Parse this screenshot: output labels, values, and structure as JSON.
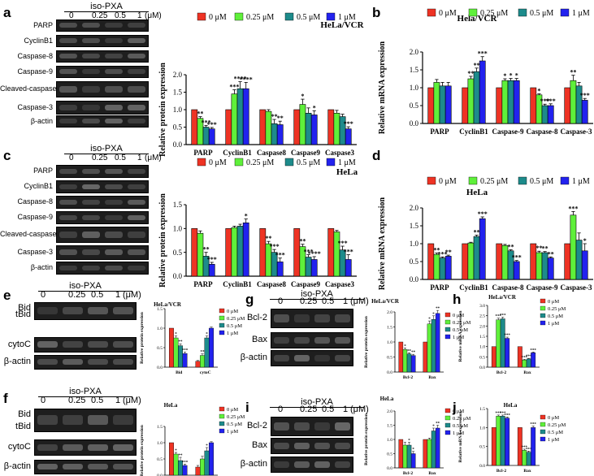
{
  "figure": {
    "unit": "(μM)",
    "drug": "iso-PXA",
    "conc_full": [
      "0",
      "0.25",
      "0.5",
      "1"
    ],
    "legend_labels": [
      "0 μM",
      "0.25 μM",
      "0.5 μM",
      "1 μM"
    ],
    "colors": [
      "#ee3324",
      "#5ff03a",
      "#1d8b8b",
      "#2222ee"
    ],
    "legend_labels_small": [
      "0 μM",
      "0.25 μM",
      "0.5 μM",
      "1 μM"
    ]
  },
  "panel_a": {
    "letter": "a",
    "blot_labels": [
      "PARP",
      "CyclinB1",
      "Caspase-8",
      "Caspase-9",
      "Cleaved-caspase9",
      "Caspase-3",
      "β-actin"
    ]
  },
  "panel_c": {
    "letter": "c",
    "blot_labels": [
      "PARP",
      "CyclinB1",
      "Caspase-8",
      "Caspase-9",
      "Cleaved-caspase9",
      "Caspase-3",
      "β-actin"
    ]
  },
  "panel_e": {
    "letter": "e",
    "blot_labels": [
      "Bid",
      "tBid",
      "cytoC",
      "β-actin"
    ]
  },
  "panel_f": {
    "letter": "f",
    "blot_labels": [
      "Bid",
      "tBid",
      "cytoC",
      "β-actin"
    ]
  },
  "panel_g": {
    "letter": "g",
    "blot_labels": [
      "Bcl-2",
      "Bax",
      "β-actin"
    ]
  },
  "panel_i": {
    "letter": "i",
    "blot_labels": [
      "Bcl-2",
      "Bax",
      "β-actin"
    ]
  },
  "chart_data": [
    {
      "id": "a",
      "type": "bar",
      "title": "HeLa/VCR",
      "ylabel": "Relative protein expression",
      "xlabel": "",
      "ylim": [
        0,
        2.0
      ],
      "yticks": [
        0.0,
        0.5,
        1.0,
        1.5,
        2.0
      ],
      "grid": false,
      "legend": "top",
      "categories": [
        "PARP",
        "CyclinB1",
        "Caspase8",
        "Caspase9",
        "Caspase3"
      ],
      "series": [
        {
          "name": "0 μM",
          "values": [
            1.0,
            1.0,
            1.0,
            1.0,
            1.0
          ],
          "errors": [
            0,
            0,
            0,
            0,
            0
          ]
        },
        {
          "name": "0.25 μM",
          "values": [
            0.75,
            1.45,
            0.95,
            1.15,
            0.9
          ],
          "errors": [
            0.05,
            0.12,
            0.05,
            0.15,
            0.08
          ]
        },
        {
          "name": "0.5 μM",
          "values": [
            0.5,
            1.6,
            0.6,
            0.9,
            0.8
          ],
          "errors": [
            0.05,
            0.2,
            0.12,
            0.15,
            0.07
          ]
        },
        {
          "name": "1 μM",
          "values": [
            0.45,
            1.6,
            0.57,
            0.85,
            0.45
          ],
          "errors": [
            0.04,
            0.18,
            0.1,
            0.12,
            0.06
          ]
        }
      ],
      "annotations": [
        [
          "",
          "**",
          "***",
          "***"
        ],
        [
          "",
          "***",
          "****",
          "****"
        ],
        [
          "",
          "",
          "**",
          "**"
        ],
        [
          "",
          "*",
          "",
          "*"
        ],
        [
          "",
          "",
          "",
          "***"
        ]
      ]
    },
    {
      "id": "b",
      "type": "bar",
      "title": "Hela/VCR",
      "ylabel": "Relative mRNA expression",
      "xlabel": "",
      "ylim": [
        0,
        2.0
      ],
      "yticks": [
        0.0,
        0.5,
        1.0,
        1.5,
        2.0
      ],
      "grid": false,
      "legend": "top",
      "categories": [
        "PARP",
        "CyclinB1",
        "Caspase-9",
        "Caspase-8",
        "Caspase-3"
      ],
      "series": [
        {
          "name": "0 μM",
          "values": [
            1.0,
            1.0,
            1.0,
            1.0,
            1.0
          ],
          "errors": [
            0,
            0,
            0,
            0,
            0
          ]
        },
        {
          "name": "0.25 μM",
          "values": [
            1.15,
            1.25,
            1.2,
            0.8,
            1.2
          ],
          "errors": [
            0.08,
            0.07,
            0.05,
            0.03,
            0.15
          ]
        },
        {
          "name": "0.5 μM",
          "values": [
            1.05,
            1.45,
            1.2,
            0.5,
            1.05
          ],
          "errors": [
            0.1,
            0.1,
            0.06,
            0.04,
            0.1
          ]
        },
        {
          "name": "1 μM",
          "values": [
            1.05,
            1.75,
            1.2,
            0.5,
            0.65
          ],
          "errors": [
            0.1,
            0.12,
            0.06,
            0.05,
            0.05
          ]
        }
      ],
      "annotations": [
        [
          "",
          "",
          "",
          ""
        ],
        [
          "",
          "**",
          "**",
          "***"
        ],
        [
          "",
          "*",
          "*",
          "*"
        ],
        [
          "",
          "*",
          "***",
          "***"
        ],
        [
          "",
          "**",
          "",
          "***"
        ]
      ]
    },
    {
      "id": "c",
      "type": "bar",
      "title": "HeLa",
      "ylabel": "Relative protein expression",
      "xlabel": "",
      "ylim": [
        0,
        1.5
      ],
      "yticks": [
        0.0,
        0.5,
        1.0,
        1.5
      ],
      "grid": false,
      "legend": "top",
      "categories": [
        "PARP",
        "CyclinB1",
        "Caspase8",
        "Caspase9",
        "Caspase3"
      ],
      "series": [
        {
          "name": "0 μM",
          "values": [
            1.0,
            1.0,
            1.0,
            1.0,
            1.0
          ],
          "errors": [
            0,
            0,
            0,
            0,
            0
          ]
        },
        {
          "name": "0.25 μM",
          "values": [
            0.9,
            1.02,
            0.68,
            0.62,
            0.93
          ],
          "errors": [
            0.05,
            0.03,
            0.05,
            0.05,
            0.03
          ]
        },
        {
          "name": "0.5 μM",
          "values": [
            0.42,
            1.05,
            0.5,
            0.4,
            0.55
          ],
          "errors": [
            0.08,
            0.04,
            0.06,
            0.05,
            0.08
          ]
        },
        {
          "name": "1 μM",
          "values": [
            0.25,
            1.12,
            0.3,
            0.35,
            0.35
          ],
          "errors": [
            0.04,
            0.08,
            0.08,
            0.06,
            0.1
          ]
        }
      ],
      "annotations": [
        [
          "",
          "",
          "**",
          "***"
        ],
        [
          "",
          "",
          "",
          "*"
        ],
        [
          "",
          "**",
          "***",
          "***"
        ],
        [
          "",
          "**",
          "***",
          "****"
        ],
        [
          "",
          "",
          "***",
          "***"
        ]
      ]
    },
    {
      "id": "d",
      "type": "bar",
      "title": "HeLa",
      "ylabel": "Relative mRNA expression",
      "xlabel": "",
      "ylim": [
        0,
        2.0
      ],
      "yticks": [
        0.0,
        0.5,
        1.0,
        1.5,
        2.0
      ],
      "grid": false,
      "legend": "top",
      "categories": [
        "PARP",
        "CyclinB1",
        "Caspase-8",
        "Caspase-9",
        "Caspase-3"
      ],
      "series": [
        {
          "name": "0 μM",
          "values": [
            1.0,
            1.0,
            1.0,
            1.0,
            1.0
          ],
          "errors": [
            0,
            0,
            0,
            0,
            0
          ]
        },
        {
          "name": "0.25 μM",
          "values": [
            0.7,
            1.02,
            0.95,
            0.75,
            1.8
          ],
          "errors": [
            0.04,
            0.02,
            0.03,
            0.04,
            0.1
          ]
        },
        {
          "name": "0.5 μM",
          "values": [
            0.6,
            1.2,
            0.8,
            0.75,
            1.1
          ],
          "errors": [
            0.03,
            0.04,
            0.03,
            0.03,
            0.2
          ]
        },
        {
          "name": "1 μM",
          "values": [
            0.65,
            1.7,
            0.5,
            0.6,
            0.8
          ],
          "errors": [
            0.03,
            0.05,
            0.03,
            0.03,
            0.2
          ]
        }
      ],
      "annotations": [
        [
          "",
          "**",
          "***",
          "**"
        ],
        [
          "",
          "",
          "**",
          "***"
        ],
        [
          "",
          "",
          "**",
          "***"
        ],
        [
          "",
          "**",
          "**",
          "**"
        ],
        [
          "",
          "***",
          "",
          "*"
        ]
      ]
    },
    {
      "id": "e",
      "type": "bar",
      "title": "HeLa/VCR",
      "ylabel": "Relative protein expression",
      "xlabel": "",
      "ylim": [
        0,
        1.5
      ],
      "yticks": [
        0.0,
        0.5,
        1.0,
        1.5
      ],
      "grid": false,
      "legend": "right",
      "categories": [
        "Bid",
        "cytoC"
      ],
      "series": [
        {
          "name": "0 μM",
          "values": [
            1.0,
            0.15
          ],
          "errors": [
            0,
            0.02
          ]
        },
        {
          "name": "0.25 μM",
          "values": [
            0.75,
            0.3
          ],
          "errors": [
            0.05,
            0.04
          ]
        },
        {
          "name": "0.5 μM",
          "values": [
            0.55,
            0.75
          ],
          "errors": [
            0.05,
            0.05
          ]
        },
        {
          "name": "1 μM",
          "values": [
            0.35,
            1.0
          ],
          "errors": [
            0.04,
            0.03
          ]
        }
      ],
      "annotations": [
        [
          "",
          "*",
          "**",
          "***"
        ],
        [
          "",
          "**",
          "*",
          ""
        ]
      ]
    },
    {
      "id": "f",
      "type": "bar",
      "title": "HeLa",
      "ylabel": "Relative protein expression",
      "xlabel": "",
      "ylim": [
        0,
        1.5
      ],
      "yticks": [
        0.0,
        0.5,
        1.0,
        1.5
      ],
      "grid": false,
      "legend": "right",
      "categories": [
        "Bid",
        "cytoC"
      ],
      "series": [
        {
          "name": "0 μM",
          "values": [
            1.0,
            0.25
          ],
          "errors": [
            0,
            0.05
          ]
        },
        {
          "name": "0.25 μM",
          "values": [
            0.65,
            0.5
          ],
          "errors": [
            0.05,
            0.08
          ]
        },
        {
          "name": "0.5 μM",
          "values": [
            0.45,
            0.75
          ],
          "errors": [
            0.1,
            0.1
          ]
        },
        {
          "name": "1 μM",
          "values": [
            0.3,
            1.0
          ],
          "errors": [
            0.04,
            0.03
          ]
        }
      ],
      "annotations": [
        [
          "",
          "*",
          "**",
          "***"
        ],
        [
          "",
          "",
          "*",
          ""
        ]
      ]
    },
    {
      "id": "g",
      "type": "bar",
      "title": "HeLa/VCR",
      "ylabel": "Relative protein expression",
      "xlabel": "",
      "ylim": [
        0,
        2.0
      ],
      "yticks": [
        0.0,
        0.5,
        1.0,
        1.5,
        2.0
      ],
      "grid": false,
      "legend": "right",
      "categories": [
        "Bcl-2",
        "Bax"
      ],
      "series": [
        {
          "name": "0 μM",
          "values": [
            1.0,
            1.0
          ],
          "errors": [
            0,
            0
          ]
        },
        {
          "name": "0.25 μM",
          "values": [
            0.75,
            1.6
          ],
          "errors": [
            0.05,
            0.1
          ]
        },
        {
          "name": "0.5 μM",
          "values": [
            0.6,
            1.75
          ],
          "errors": [
            0.04,
            0.12
          ]
        },
        {
          "name": "1 μM",
          "values": [
            0.55,
            1.95
          ],
          "errors": [
            0.04,
            0.1
          ]
        }
      ],
      "annotations": [
        [
          "",
          "*",
          "**",
          "**"
        ],
        [
          "",
          "*",
          "*",
          "**"
        ]
      ]
    },
    {
      "id": "h",
      "type": "bar",
      "title": "HeLa/VCR",
      "ylabel": "Relative mRNA expression",
      "xlabel": "",
      "ylim": [
        0,
        3.0
      ],
      "yticks": [
        0.0,
        0.5,
        1.0,
        1.5,
        2.0,
        2.5,
        3.0
      ],
      "grid": false,
      "legend": "right",
      "categories": [
        "Bcl-2",
        "Bax"
      ],
      "series": [
        {
          "name": "0 μM",
          "values": [
            1.0,
            1.0
          ],
          "errors": [
            0,
            0
          ]
        },
        {
          "name": "0.25 μM",
          "values": [
            2.3,
            0.35
          ],
          "errors": [
            0.08,
            0.03
          ]
        },
        {
          "name": "0.5 μM",
          "values": [
            2.35,
            0.4
          ],
          "errors": [
            0.08,
            0.03
          ]
        },
        {
          "name": "1 μM",
          "values": [
            1.4,
            0.7
          ],
          "errors": [
            0.06,
            0.04
          ]
        }
      ],
      "annotations": [
        [
          "",
          "***",
          "***",
          "***"
        ],
        [
          "",
          "***",
          "***",
          "***"
        ]
      ]
    },
    {
      "id": "i",
      "type": "bar",
      "title": "HeLa",
      "ylabel": "Relative protein expression",
      "xlabel": "",
      "ylim": [
        0,
        2.0
      ],
      "yticks": [
        0.0,
        0.5,
        1.0,
        1.5,
        2.0
      ],
      "grid": false,
      "legend": "right",
      "categories": [
        "Bcl-2",
        "Bax"
      ],
      "series": [
        {
          "name": "0 μM",
          "values": [
            1.0,
            1.0
          ],
          "errors": [
            0,
            0
          ]
        },
        {
          "name": "0.25 μM",
          "values": [
            0.8,
            1.0
          ],
          "errors": [
            0.1,
            0.05
          ]
        },
        {
          "name": "0.5 μM",
          "values": [
            0.8,
            1.3
          ],
          "errors": [
            0.1,
            0.1
          ]
        },
        {
          "name": "1 μM",
          "values": [
            0.5,
            1.4
          ],
          "errors": [
            0.08,
            0.1
          ]
        }
      ],
      "annotations": [
        [
          "",
          "",
          "*",
          "*"
        ],
        [
          "",
          "",
          "*",
          "**"
        ]
      ]
    },
    {
      "id": "j",
      "type": "bar",
      "title": "HeLa",
      "ylabel": "Relative mRNA expression",
      "xlabel": "",
      "ylim": [
        0,
        1.5
      ],
      "yticks": [
        0.0,
        0.5,
        1.0,
        1.5
      ],
      "grid": false,
      "legend": "right",
      "categories": [
        "Bcl-2",
        "Bax"
      ],
      "series": [
        {
          "name": "0 μM",
          "values": [
            1.0,
            1.0
          ],
          "errors": [
            0,
            0
          ]
        },
        {
          "name": "0.25 μM",
          "values": [
            1.3,
            0.4
          ],
          "errors": [
            0.03,
            0.03
          ]
        },
        {
          "name": "0.5 μM",
          "values": [
            1.3,
            0.35
          ],
          "errors": [
            0.03,
            0.03
          ]
        },
        {
          "name": "1 μM",
          "values": [
            1.25,
            1.0
          ],
          "errors": [
            0.03,
            0.04
          ]
        }
      ],
      "annotations": [
        [
          "",
          "***",
          "***",
          "***"
        ],
        [
          "",
          "***",
          "***",
          "***"
        ]
      ]
    }
  ]
}
